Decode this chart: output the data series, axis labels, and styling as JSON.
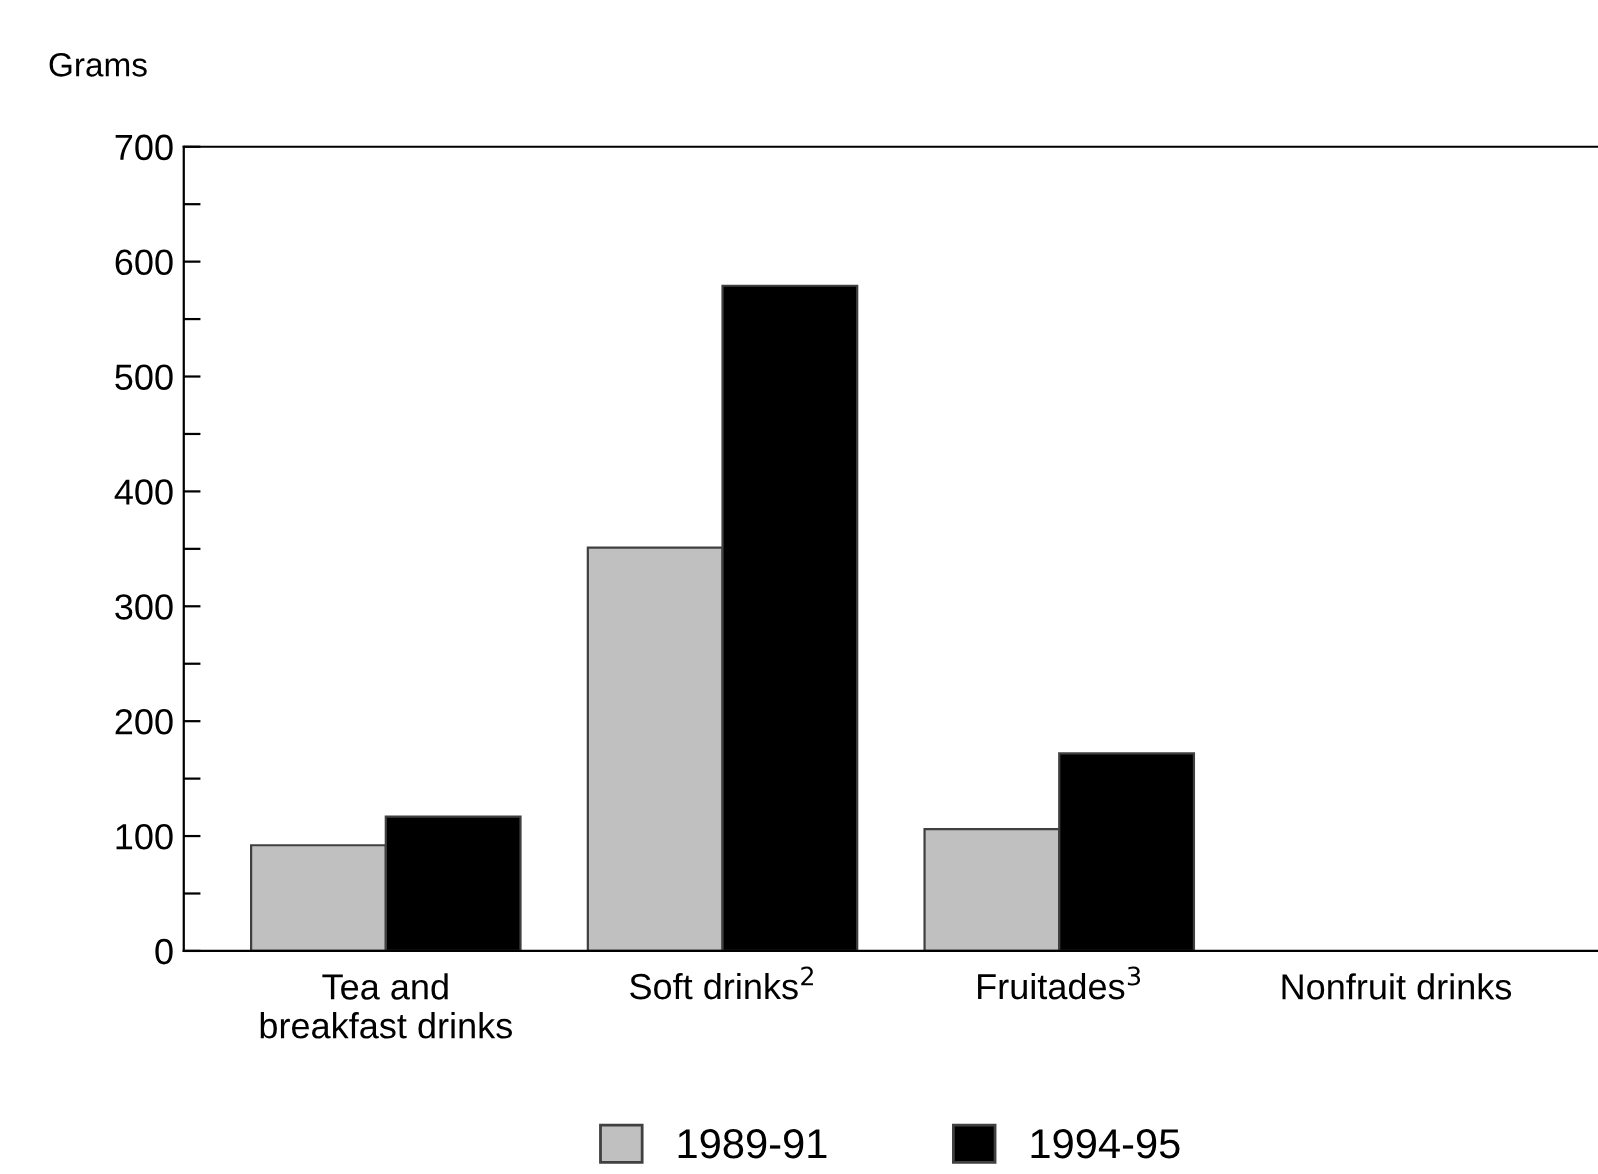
{
  "chart_data": {
    "type": "bar",
    "ylabel": "Grams",
    "categories": [
      "Tea and\nbreakfast drinks",
      "Soft drinks$^{2}$",
      "Fruitades$^{3}$",
      "Nonfruit drinks"
    ],
    "series": [
      {
        "name": "1989-91",
        "color": "#c0c0c0",
        "values": [
          92,
          351,
          106,
          null
        ]
      },
      {
        "name": "1994-95",
        "color": "#000000",
        "values": [
          117,
          579,
          172,
          null
        ]
      }
    ],
    "ylim": [
      0,
      700
    ],
    "yticks": [
      0,
      {
        "value": 50,
        "label": null
      },
      100,
      {
        "value": 150,
        "label": null
      },
      200,
      {
        "value": 250,
        "label": null
      },
      300,
      {
        "value": 350,
        "label": null
      },
      400,
      {
        "value": 450,
        "label": null
      },
      500,
      {
        "value": 550,
        "label": null
      },
      600,
      {
        "value": 650,
        "label": null
      },
      700
    ],
    "grid": false,
    "legend": "bottom"
  }
}
